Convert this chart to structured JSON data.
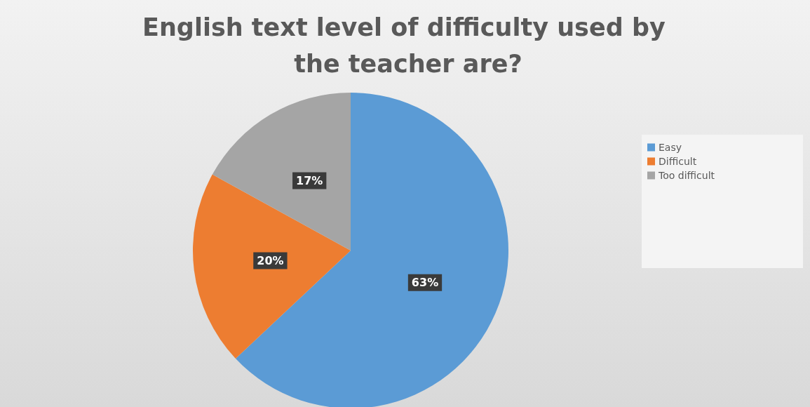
{
  "chart_data": {
    "type": "pie",
    "title": "English text level of difficulty used by the teacher are?",
    "categories": [
      "Easy",
      "Difficult",
      "Too difficult"
    ],
    "values": [
      63,
      20,
      17
    ],
    "colors": [
      "#5b9bd5",
      "#ed7d31",
      "#a5a5a5"
    ],
    "value_labels": [
      "63%",
      "20%",
      "17%"
    ],
    "legend": "right"
  }
}
